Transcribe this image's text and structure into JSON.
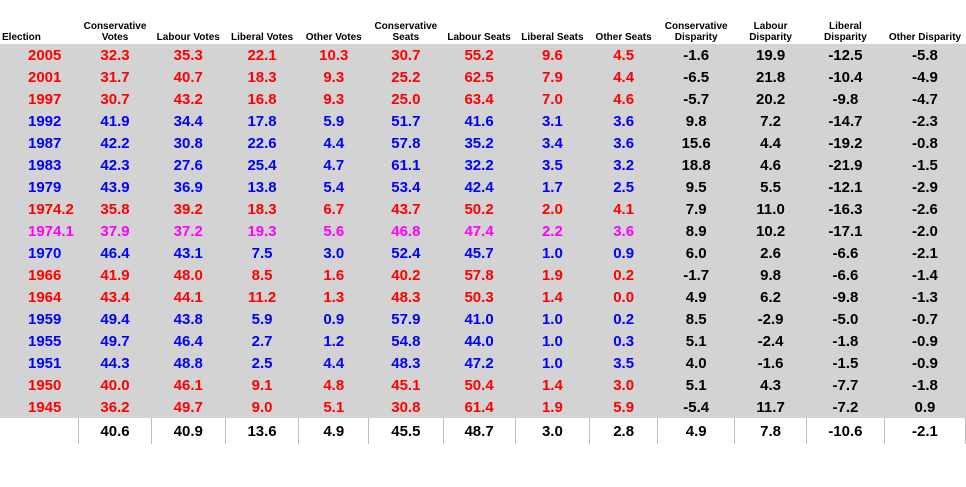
{
  "colors": {
    "grid_background": "#d3d3d3",
    "conservative_year": "#0000ff",
    "labour_year": "#ff0000",
    "hung_year": "#ff00ff",
    "disparity_text": "#000000"
  },
  "headers": [
    "Election",
    "Conservative Votes",
    "Labour Votes",
    "Liberal Votes",
    "Other Votes",
    "Conservative Seats",
    "Labour Seats",
    "Liberal Seats",
    "Other Seats",
    "Conservative Disparity",
    "Labour Disparity",
    "Liberal Disparity",
    "Other Disparity"
  ],
  "rows": [
    {
      "party": "red",
      "cells": [
        "2005",
        "32.3",
        "35.3",
        "22.1",
        "10.3",
        "30.7",
        "55.2",
        "9.6",
        "4.5",
        "-1.6",
        "19.9",
        "-12.5",
        "-5.8"
      ]
    },
    {
      "party": "red",
      "cells": [
        "2001",
        "31.7",
        "40.7",
        "18.3",
        "9.3",
        "25.2",
        "62.5",
        "7.9",
        "4.4",
        "-6.5",
        "21.8",
        "-10.4",
        "-4.9"
      ]
    },
    {
      "party": "red",
      "cells": [
        "1997",
        "30.7",
        "43.2",
        "16.8",
        "9.3",
        "25.0",
        "63.4",
        "7.0",
        "4.6",
        "-5.7",
        "20.2",
        "-9.8",
        "-4.7"
      ]
    },
    {
      "party": "blue",
      "cells": [
        "1992",
        "41.9",
        "34.4",
        "17.8",
        "5.9",
        "51.7",
        "41.6",
        "3.1",
        "3.6",
        "9.8",
        "7.2",
        "-14.7",
        "-2.3"
      ]
    },
    {
      "party": "blue",
      "cells": [
        "1987",
        "42.2",
        "30.8",
        "22.6",
        "4.4",
        "57.8",
        "35.2",
        "3.4",
        "3.6",
        "15.6",
        "4.4",
        "-19.2",
        "-0.8"
      ]
    },
    {
      "party": "blue",
      "cells": [
        "1983",
        "42.3",
        "27.6",
        "25.4",
        "4.7",
        "61.1",
        "32.2",
        "3.5",
        "3.2",
        "18.8",
        "4.6",
        "-21.9",
        "-1.5"
      ]
    },
    {
      "party": "blue",
      "cells": [
        "1979",
        "43.9",
        "36.9",
        "13.8",
        "5.4",
        "53.4",
        "42.4",
        "1.7",
        "2.5",
        "9.5",
        "5.5",
        "-12.1",
        "-2.9"
      ]
    },
    {
      "party": "red",
      "cells": [
        "1974.2",
        "35.8",
        "39.2",
        "18.3",
        "6.7",
        "43.7",
        "50.2",
        "2.0",
        "4.1",
        "7.9",
        "11.0",
        "-16.3",
        "-2.6"
      ]
    },
    {
      "party": "pink",
      "cells": [
        "1974.1",
        "37.9",
        "37.2",
        "19.3",
        "5.6",
        "46.8",
        "47.4",
        "2.2",
        "3.6",
        "8.9",
        "10.2",
        "-17.1",
        "-2.0"
      ]
    },
    {
      "party": "blue",
      "cells": [
        "1970",
        "46.4",
        "43.1",
        "7.5",
        "3.0",
        "52.4",
        "45.7",
        "1.0",
        "0.9",
        "6.0",
        "2.6",
        "-6.6",
        "-2.1"
      ]
    },
    {
      "party": "red",
      "cells": [
        "1966",
        "41.9",
        "48.0",
        "8.5",
        "1.6",
        "40.2",
        "57.8",
        "1.9",
        "0.2",
        "-1.7",
        "9.8",
        "-6.6",
        "-1.4"
      ]
    },
    {
      "party": "red",
      "cells": [
        "1964",
        "43.4",
        "44.1",
        "11.2",
        "1.3",
        "48.3",
        "50.3",
        "1.4",
        "0.0",
        "4.9",
        "6.2",
        "-9.8",
        "-1.3"
      ]
    },
    {
      "party": "blue",
      "cells": [
        "1959",
        "49.4",
        "43.8",
        "5.9",
        "0.9",
        "57.9",
        "41.0",
        "1.0",
        "0.2",
        "8.5",
        "-2.9",
        "-5.0",
        "-0.7"
      ]
    },
    {
      "party": "blue",
      "cells": [
        "1955",
        "49.7",
        "46.4",
        "2.7",
        "1.2",
        "54.8",
        "44.0",
        "1.0",
        "0.3",
        "5.1",
        "-2.4",
        "-1.8",
        "-0.9"
      ]
    },
    {
      "party": "blue",
      "cells": [
        "1951",
        "44.3",
        "48.8",
        "2.5",
        "4.4",
        "48.3",
        "47.2",
        "1.0",
        "3.5",
        "4.0",
        "-1.6",
        "-1.5",
        "-0.9"
      ]
    },
    {
      "party": "red",
      "cells": [
        "1950",
        "40.0",
        "46.1",
        "9.1",
        "4.8",
        "45.1",
        "50.4",
        "1.4",
        "3.0",
        "5.1",
        "4.3",
        "-7.7",
        "-1.8"
      ]
    },
    {
      "party": "red",
      "cells": [
        "1945",
        "36.2",
        "49.7",
        "9.0",
        "5.1",
        "30.8",
        "61.4",
        "1.9",
        "5.9",
        "-5.4",
        "11.7",
        "-7.2",
        "0.9"
      ]
    }
  ],
  "totals": [
    "",
    "40.6",
    "40.9",
    "13.6",
    "4.9",
    "45.5",
    "48.7",
    "3.0",
    "2.8",
    "4.9",
    "7.8",
    "-10.6",
    "-2.1"
  ]
}
